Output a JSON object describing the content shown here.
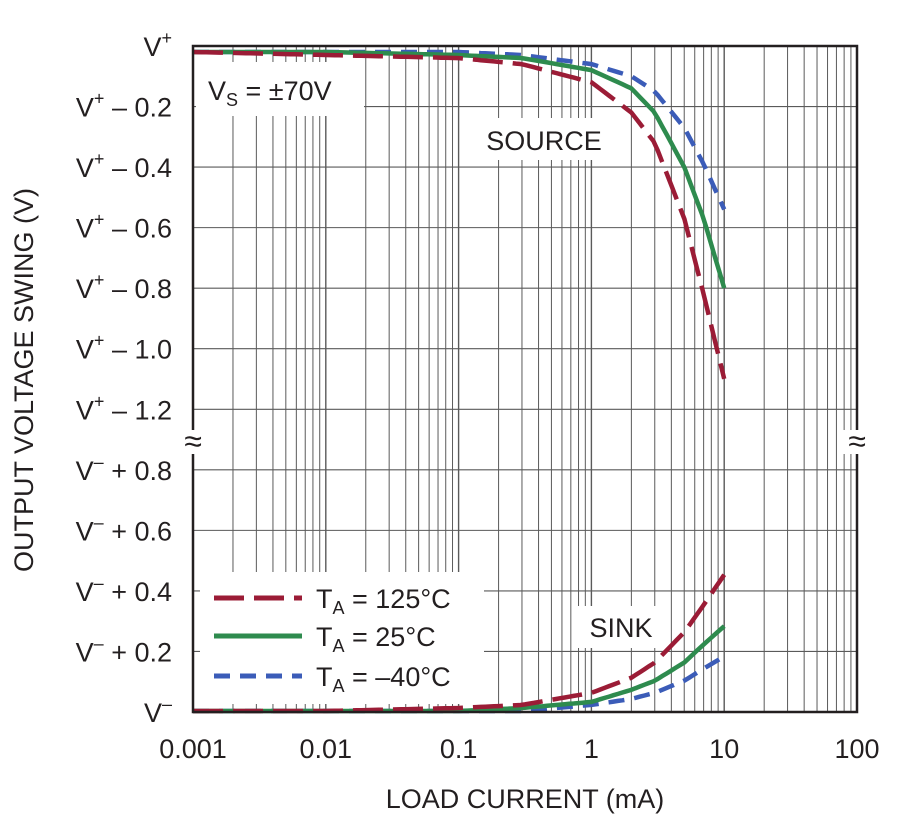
{
  "chart_data": {
    "type": "line",
    "title": "",
    "xlabel": "LOAD CURRENT (mA)",
    "ylabel": "OUTPUT VOLTAGE SWING (V)",
    "x_scale": "log",
    "xlim": [
      0.001,
      100
    ],
    "x_ticks": [
      "0.001",
      "0.01",
      "0.1",
      "1",
      "10",
      "100"
    ],
    "y_ticks": [
      {
        "base": "V",
        "sup": "+",
        "tail": ""
      },
      {
        "base": "V",
        "sup": "+",
        "tail": " – 0.2"
      },
      {
        "base": "V",
        "sup": "+",
        "tail": " – 0.4"
      },
      {
        "base": "V",
        "sup": "+",
        "tail": " – 0.6"
      },
      {
        "base": "V",
        "sup": "+",
        "tail": " – 0.8"
      },
      {
        "base": "V",
        "sup": "+",
        "tail": " – 1.0"
      },
      {
        "base": "V",
        "sup": "+",
        "tail": " – 1.2"
      },
      {
        "base": "V",
        "sup": "–",
        "tail": " + 0.8"
      },
      {
        "base": "V",
        "sup": "–",
        "tail": " + 0.6"
      },
      {
        "base": "V",
        "sup": "–",
        "tail": " + 0.4"
      },
      {
        "base": "V",
        "sup": "–",
        "tail": " + 0.2"
      },
      {
        "base": "V",
        "sup": "–",
        "tail": ""
      }
    ],
    "annotations": {
      "supply": {
        "base": "V",
        "sub": "S",
        "tail": " = ±70V"
      },
      "source": "SOURCE",
      "sink": "SINK",
      "axis_break": "≈"
    },
    "grid": true,
    "legend_position": "bottom-left",
    "series": [
      {
        "name": "T_A = 125°C",
        "legend": {
          "base": "T",
          "sub": "A",
          "tail": " = 125°C"
        },
        "color": "#9b1c36",
        "dash": "long-dash",
        "source": {
          "x": [
            0.001,
            0.01,
            0.1,
            0.3,
            1,
            2,
            3,
            5,
            7,
            10
          ],
          "drop_from_vplus": [
            0.0,
            0.01,
            0.02,
            0.04,
            0.1,
            0.2,
            0.3,
            0.55,
            0.8,
            1.08
          ]
        },
        "sink": {
          "x": [
            0.001,
            0.01,
            0.1,
            0.3,
            1,
            2,
            3,
            5,
            7,
            10
          ],
          "above_vminus": [
            0.0,
            0.0,
            0.01,
            0.02,
            0.06,
            0.11,
            0.16,
            0.26,
            0.35,
            0.45
          ]
        }
      },
      {
        "name": "T_A = 25°C",
        "legend": {
          "base": "T",
          "sub": "A",
          "tail": " = 25°C"
        },
        "color": "#2e8b4e",
        "dash": "solid",
        "source": {
          "x": [
            0.001,
            0.01,
            0.1,
            0.3,
            1,
            2,
            3,
            5,
            7,
            10
          ],
          "drop_from_vplus": [
            0.0,
            0.0,
            0.01,
            0.02,
            0.06,
            0.12,
            0.2,
            0.38,
            0.55,
            0.78
          ]
        },
        "sink": {
          "x": [
            0.001,
            0.01,
            0.1,
            0.3,
            1,
            2,
            3,
            5,
            7,
            10
          ],
          "above_vminus": [
            0.0,
            0.0,
            0.0,
            0.01,
            0.03,
            0.07,
            0.1,
            0.16,
            0.22,
            0.28
          ]
        }
      },
      {
        "name": "T_A = –40°C",
        "legend": {
          "base": "T",
          "sub": "A",
          "tail": " = –40°C"
        },
        "color": "#3b5cb8",
        "dash": "short-dash",
        "source": {
          "x": [
            0.001,
            0.01,
            0.1,
            0.3,
            1,
            2,
            3,
            5,
            7,
            10
          ],
          "drop_from_vplus": [
            0.0,
            0.0,
            0.0,
            0.01,
            0.04,
            0.08,
            0.13,
            0.25,
            0.37,
            0.52
          ]
        },
        "sink": {
          "x": [
            0.001,
            0.01,
            0.1,
            0.3,
            1,
            2,
            3,
            5,
            7,
            10
          ],
          "above_vminus": [
            0.0,
            0.0,
            0.0,
            0.0,
            0.02,
            0.04,
            0.06,
            0.1,
            0.14,
            0.18
          ]
        }
      }
    ]
  }
}
